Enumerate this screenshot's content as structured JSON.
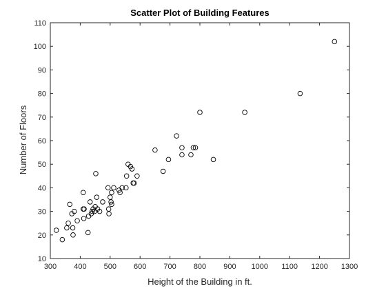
{
  "chart_data": {
    "type": "scatter",
    "title": "Scatter Plot of Building Features",
    "xlabel": "Height of the Building in ft.",
    "ylabel": "Number of Floors",
    "xlim": [
      300,
      1300
    ],
    "ylim": [
      10,
      110
    ],
    "xticks": [
      300,
      400,
      500,
      600,
      700,
      800,
      900,
      1000,
      1100,
      1200,
      1300
    ],
    "yticks": [
      10,
      20,
      30,
      40,
      50,
      60,
      70,
      80,
      90,
      100,
      110
    ],
    "grid": false,
    "legend": "none",
    "marker": "circle-open",
    "points": [
      {
        "x": 320,
        "y": 22
      },
      {
        "x": 340,
        "y": 18
      },
      {
        "x": 355,
        "y": 23
      },
      {
        "x": 360,
        "y": 25
      },
      {
        "x": 365,
        "y": 33
      },
      {
        "x": 372,
        "y": 29
      },
      {
        "x": 375,
        "y": 23
      },
      {
        "x": 376,
        "y": 20
      },
      {
        "x": 380,
        "y": 30
      },
      {
        "x": 390,
        "y": 26
      },
      {
        "x": 410,
        "y": 38
      },
      {
        "x": 410,
        "y": 31
      },
      {
        "x": 413,
        "y": 31
      },
      {
        "x": 412,
        "y": 27
      },
      {
        "x": 426,
        "y": 21
      },
      {
        "x": 428,
        "y": 28
      },
      {
        "x": 433,
        "y": 34
      },
      {
        "x": 437,
        "y": 29
      },
      {
        "x": 440,
        "y": 30
      },
      {
        "x": 443,
        "y": 31
      },
      {
        "x": 448,
        "y": 30
      },
      {
        "x": 450,
        "y": 32
      },
      {
        "x": 452,
        "y": 46
      },
      {
        "x": 455,
        "y": 36
      },
      {
        "x": 458,
        "y": 31
      },
      {
        "x": 465,
        "y": 30
      },
      {
        "x": 475,
        "y": 34
      },
      {
        "x": 493,
        "y": 40
      },
      {
        "x": 495,
        "y": 31
      },
      {
        "x": 496,
        "y": 29
      },
      {
        "x": 500,
        "y": 36
      },
      {
        "x": 503,
        "y": 34
      },
      {
        "x": 505,
        "y": 38
      },
      {
        "x": 505,
        "y": 33
      },
      {
        "x": 512,
        "y": 40
      },
      {
        "x": 530,
        "y": 39
      },
      {
        "x": 533,
        "y": 38
      },
      {
        "x": 540,
        "y": 40
      },
      {
        "x": 553,
        "y": 40
      },
      {
        "x": 555,
        "y": 45
      },
      {
        "x": 560,
        "y": 50
      },
      {
        "x": 568,
        "y": 49
      },
      {
        "x": 573,
        "y": 48
      },
      {
        "x": 577,
        "y": 42
      },
      {
        "x": 580,
        "y": 42
      },
      {
        "x": 590,
        "y": 45
      },
      {
        "x": 650,
        "y": 56
      },
      {
        "x": 677,
        "y": 47
      },
      {
        "x": 695,
        "y": 52
      },
      {
        "x": 722,
        "y": 62
      },
      {
        "x": 740,
        "y": 57
      },
      {
        "x": 740,
        "y": 54
      },
      {
        "x": 770,
        "y": 54
      },
      {
        "x": 778,
        "y": 57
      },
      {
        "x": 785,
        "y": 57
      },
      {
        "x": 800,
        "y": 72
      },
      {
        "x": 845,
        "y": 52
      },
      {
        "x": 950,
        "y": 72
      },
      {
        "x": 1135,
        "y": 80
      },
      {
        "x": 1250,
        "y": 102
      }
    ]
  }
}
